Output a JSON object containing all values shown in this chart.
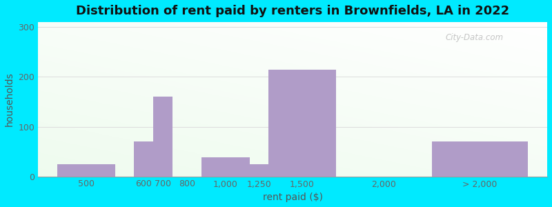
{
  "title": "Distribution of rent paid by renters in Brownfields, LA in 2022",
  "xlabel": "rent paid ($)",
  "ylabel": "households",
  "bar_lefts": [
    100,
    500,
    600,
    700,
    850,
    1100,
    1200,
    1550,
    2050
  ],
  "bar_rights": [
    400,
    600,
    700,
    850,
    1100,
    1200,
    1550,
    2050,
    2550
  ],
  "bar_heights": [
    25,
    70,
    160,
    0,
    38,
    25,
    215,
    0,
    70
  ],
  "bar_color": "#b09cc8",
  "outer_bg": "#00eaff",
  "plot_bg_top": "#f8fdf0",
  "plot_bg_bottom": "#eef8f4",
  "yticks": [
    0,
    100,
    200,
    300
  ],
  "ylim": [
    0,
    310
  ],
  "xlim": [
    0,
    2650
  ],
  "xtick_positions": [
    250,
    550,
    650,
    775,
    975,
    1150,
    1375,
    1800,
    2300
  ],
  "xtick_labels": [
    "500",
    "600",
    "700",
    "800",
    "1,000",
    "1,250",
    "1,500",
    "2,000",
    "> 2,000"
  ],
  "title_fontsize": 13,
  "axis_label_fontsize": 10,
  "tick_fontsize": 9,
  "watermark": "City-Data.com"
}
